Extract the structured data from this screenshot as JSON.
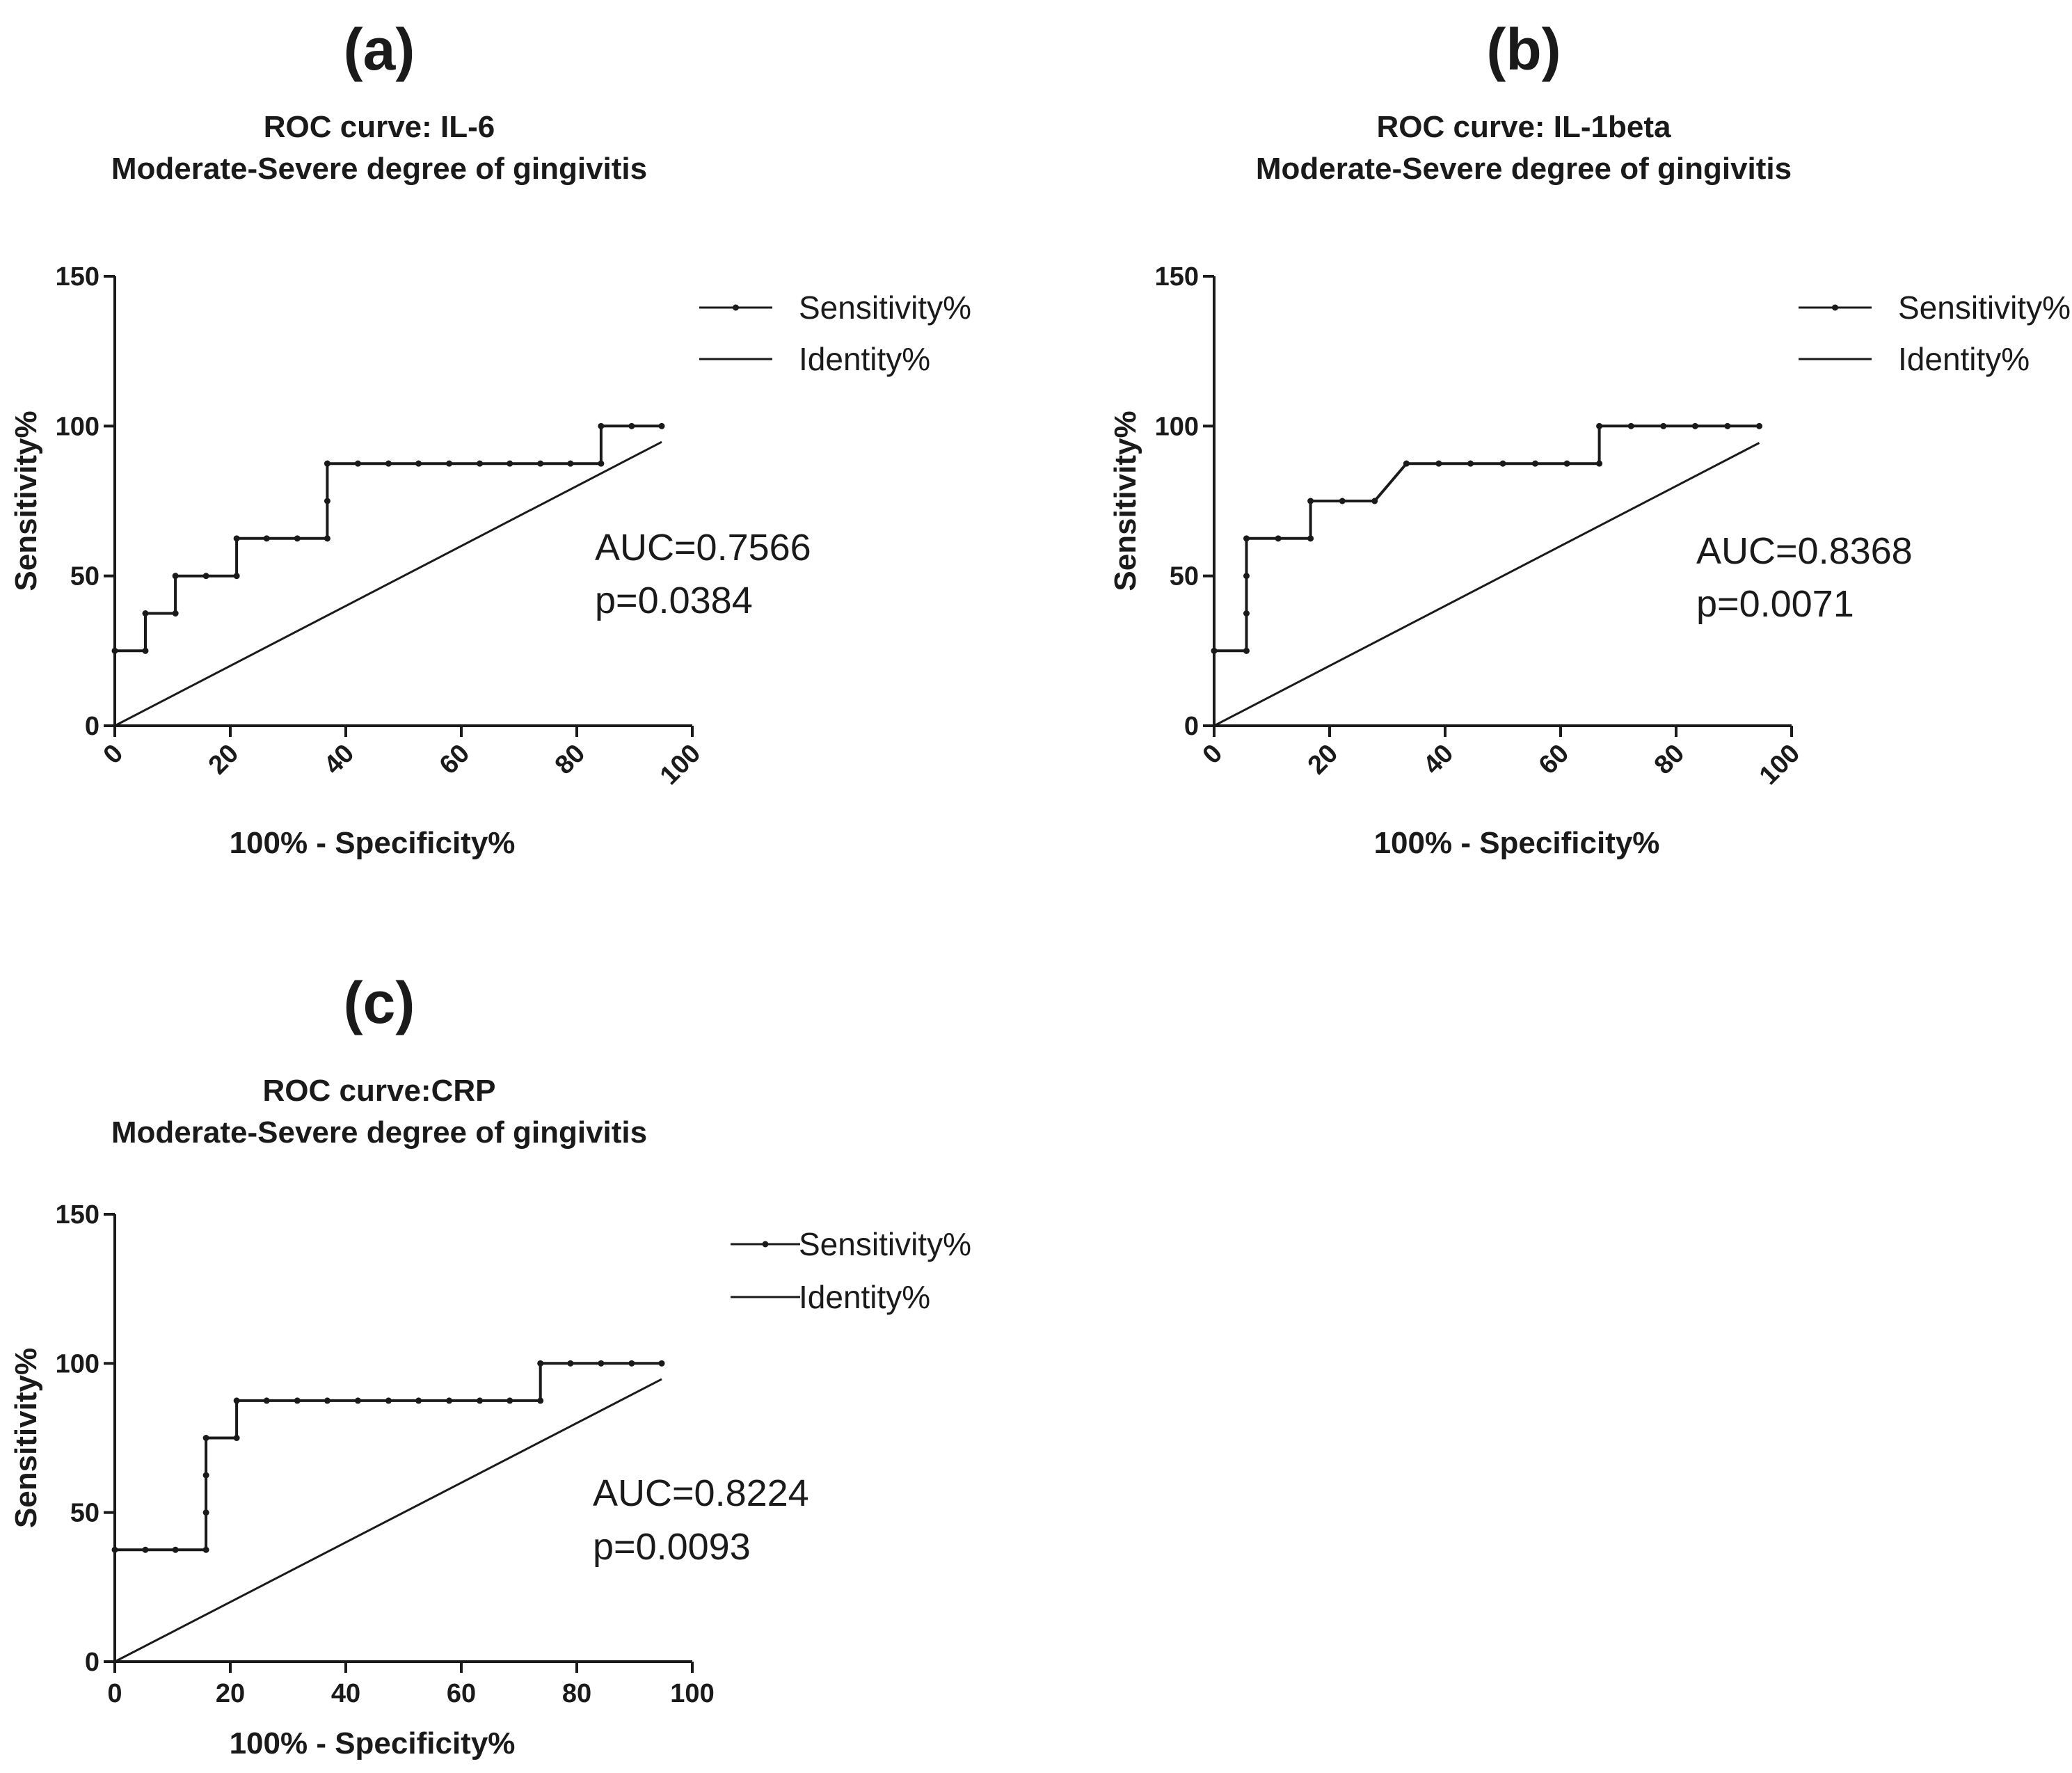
{
  "figure": {
    "colors": {
      "ink": "#1a1a1a",
      "background": "#ffffff"
    }
  },
  "chart_data": [
    {
      "type": "line",
      "panel": "(a)",
      "title": [
        "ROC curve: IL-6",
        "Moderate-Severe degree of gingivitis"
      ],
      "xlabel": "100% - Specificity%",
      "ylabel": "Sensitivity%",
      "xlim": [
        0,
        100
      ],
      "ylim": [
        0,
        150
      ],
      "xticks": [
        0,
        20,
        40,
        60,
        80,
        100
      ],
      "yticks": [
        0,
        50,
        100,
        150
      ],
      "x_tick_rotation": -45,
      "legend_position": "top-right",
      "series": [
        {
          "name": "Sensitivity%",
          "marker": "dot",
          "step": true,
          "points": [
            [
              0,
              25
            ],
            [
              5.3,
              25
            ],
            [
              5.3,
              37.5
            ],
            [
              10.5,
              37.5
            ],
            [
              10.5,
              50
            ],
            [
              15.8,
              50
            ],
            [
              21.1,
              50
            ],
            [
              21.1,
              62.5
            ],
            [
              26.3,
              62.5
            ],
            [
              31.6,
              62.5
            ],
            [
              36.8,
              62.5
            ],
            [
              36.8,
              75
            ],
            [
              36.8,
              87.5
            ],
            [
              42.1,
              87.5
            ],
            [
              47.4,
              87.5
            ],
            [
              52.6,
              87.5
            ],
            [
              57.9,
              87.5
            ],
            [
              63.2,
              87.5
            ],
            [
              68.4,
              87.5
            ],
            [
              73.7,
              87.5
            ],
            [
              78.9,
              87.5
            ],
            [
              84.2,
              87.5
            ],
            [
              84.2,
              100
            ],
            [
              89.5,
              100
            ],
            [
              94.7,
              100
            ]
          ]
        },
        {
          "name": "Identity%",
          "marker": "none",
          "step": false,
          "points": [
            [
              0,
              0
            ],
            [
              94.7,
              94.7
            ]
          ]
        }
      ],
      "annotations": [
        "AUC=0.7566",
        "p=0.0384"
      ]
    },
    {
      "type": "line",
      "panel": "(b)",
      "title": [
        "ROC curve: IL-1beta",
        "Moderate-Severe degree of gingivitis"
      ],
      "xlabel": "100% - Specificity%",
      "ylabel": "Sensitivity%",
      "xlim": [
        0,
        100
      ],
      "ylim": [
        0,
        150
      ],
      "xticks": [
        0,
        20,
        40,
        60,
        80,
        100
      ],
      "yticks": [
        0,
        50,
        100,
        150
      ],
      "x_tick_rotation": -45,
      "legend_position": "top-right",
      "series": [
        {
          "name": "Sensitivity%",
          "marker": "dot",
          "step": true,
          "points": [
            [
              0,
              25
            ],
            [
              5.6,
              25
            ],
            [
              5.6,
              37.5
            ],
            [
              5.6,
              50
            ],
            [
              5.6,
              62.5
            ],
            [
              11.1,
              62.5
            ],
            [
              16.7,
              62.5
            ],
            [
              16.7,
              75
            ],
            [
              22.2,
              75
            ],
            [
              27.8,
              75
            ],
            [
              33.3,
              87.5
            ],
            [
              38.9,
              87.5
            ],
            [
              44.4,
              87.5
            ],
            [
              50,
              87.5
            ],
            [
              55.6,
              87.5
            ],
            [
              61.1,
              87.5
            ],
            [
              66.7,
              87.5
            ],
            [
              66.7,
              100
            ],
            [
              72.2,
              100
            ],
            [
              77.8,
              100
            ],
            [
              83.3,
              100
            ],
            [
              88.9,
              100
            ],
            [
              94.4,
              100
            ]
          ]
        },
        {
          "name": "Identity%",
          "marker": "none",
          "step": false,
          "points": [
            [
              0,
              0
            ],
            [
              94.4,
              94.4
            ]
          ]
        }
      ],
      "annotations": [
        "AUC=0.8368",
        "p=0.0071"
      ]
    },
    {
      "type": "line",
      "panel": "(c)",
      "title": [
        "ROC curve:CRP",
        "Moderate-Severe degree of gingivitis"
      ],
      "xlabel": "100% - Specificity%",
      "ylabel": "Sensitivity%",
      "xlim": [
        0,
        100
      ],
      "ylim": [
        0,
        150
      ],
      "xticks": [
        0,
        20,
        40,
        60,
        80,
        100
      ],
      "yticks": [
        0,
        50,
        100,
        150
      ],
      "x_tick_rotation": 0,
      "legend_position": "top-right",
      "series": [
        {
          "name": "Sensitivity%",
          "marker": "dot",
          "step": true,
          "points": [
            [
              0,
              37.5
            ],
            [
              5.3,
              37.5
            ],
            [
              10.5,
              37.5
            ],
            [
              15.8,
              37.5
            ],
            [
              15.8,
              50
            ],
            [
              15.8,
              62.5
            ],
            [
              15.8,
              75
            ],
            [
              21.1,
              75
            ],
            [
              21.1,
              87.5
            ],
            [
              26.3,
              87.5
            ],
            [
              31.6,
              87.5
            ],
            [
              36.8,
              87.5
            ],
            [
              42.1,
              87.5
            ],
            [
              47.4,
              87.5
            ],
            [
              52.6,
              87.5
            ],
            [
              57.9,
              87.5
            ],
            [
              63.2,
              87.5
            ],
            [
              68.4,
              87.5
            ],
            [
              73.7,
              87.5
            ],
            [
              73.7,
              100
            ],
            [
              78.9,
              100
            ],
            [
              84.2,
              100
            ],
            [
              89.5,
              100
            ],
            [
              94.7,
              100
            ]
          ]
        },
        {
          "name": "Identity%",
          "marker": "none",
          "step": false,
          "points": [
            [
              0,
              0
            ],
            [
              94.7,
              94.7
            ]
          ]
        }
      ],
      "annotations": [
        "AUC=0.8224",
        "p=0.0093"
      ]
    }
  ]
}
